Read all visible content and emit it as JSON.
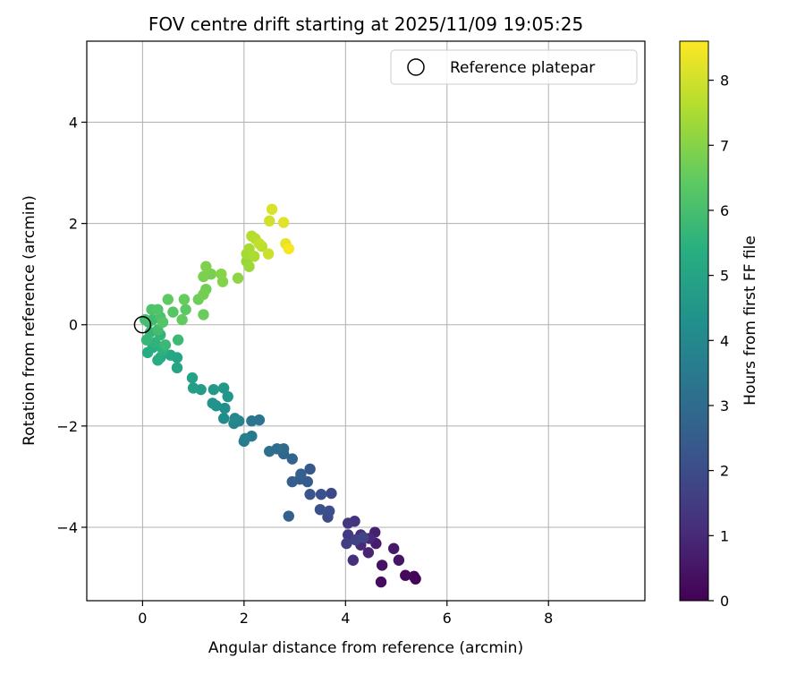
{
  "chart_data": {
    "type": "scatter",
    "title": "FOV centre drift starting at 2025/11/09 19:05:25",
    "xlabel": "Angular distance from reference (arcmin)",
    "ylabel": "Rotation from reference (arcmin)",
    "xlim": [
      -1.1,
      9.9
    ],
    "ylim": [
      -5.45,
      5.6
    ],
    "xticks": [
      0,
      2,
      4,
      6,
      8
    ],
    "xtick_labels": [
      "0",
      "2",
      "4",
      "6",
      "8"
    ],
    "yticks": [
      -4,
      -2,
      0,
      2,
      4
    ],
    "ytick_labels": [
      "−4",
      "−2",
      "0",
      "2",
      "4"
    ],
    "grid": true,
    "legend": {
      "position": "top-right",
      "entries": [
        {
          "label": "Reference platepar",
          "marker": "open-circle"
        }
      ]
    },
    "reference_point": {
      "x": 0,
      "y": 0
    },
    "colorbar": {
      "label": "Hours from first FF file",
      "colormap": "viridis",
      "range": [
        0,
        8.6
      ],
      "ticks": [
        0,
        1,
        2,
        3,
        4,
        5,
        6,
        7,
        8
      ],
      "tick_labels": [
        "0",
        "1",
        "2",
        "3",
        "4",
        "5",
        "6",
        "7",
        "8"
      ]
    },
    "points": [
      {
        "x": 5.38,
        "y": -5.02,
        "t": 0.05
      },
      {
        "x": 5.35,
        "y": -4.97,
        "t": 0.1
      },
      {
        "x": 5.18,
        "y": -4.95,
        "t": 0.2
      },
      {
        "x": 4.7,
        "y": -5.08,
        "t": 0.3
      },
      {
        "x": 4.72,
        "y": -4.75,
        "t": 0.4
      },
      {
        "x": 5.05,
        "y": -4.65,
        "t": 0.5
      },
      {
        "x": 4.95,
        "y": -4.42,
        "t": 0.6
      },
      {
        "x": 4.6,
        "y": -4.32,
        "t": 0.7
      },
      {
        "x": 4.58,
        "y": -4.1,
        "t": 0.8
      },
      {
        "x": 4.45,
        "y": -4.5,
        "t": 0.9
      },
      {
        "x": 4.47,
        "y": -4.22,
        "t": 1.0
      },
      {
        "x": 4.3,
        "y": -4.35,
        "t": 1.05
      },
      {
        "x": 4.3,
        "y": -4.15,
        "t": 1.1
      },
      {
        "x": 4.15,
        "y": -4.65,
        "t": 1.2
      },
      {
        "x": 4.18,
        "y": -3.88,
        "t": 1.3
      },
      {
        "x": 4.05,
        "y": -3.92,
        "t": 1.4
      },
      {
        "x": 4.05,
        "y": -4.15,
        "t": 1.5
      },
      {
        "x": 4.02,
        "y": -4.32,
        "t": 1.6
      },
      {
        "x": 4.2,
        "y": -4.25,
        "t": 1.7
      },
      {
        "x": 4.35,
        "y": -4.2,
        "t": 1.8
      },
      {
        "x": 3.72,
        "y": -3.33,
        "t": 1.9
      },
      {
        "x": 3.65,
        "y": -3.8,
        "t": 2.0
      },
      {
        "x": 3.68,
        "y": -3.68,
        "t": 2.1
      },
      {
        "x": 3.5,
        "y": -3.65,
        "t": 2.15
      },
      {
        "x": 3.52,
        "y": -3.35,
        "t": 2.2
      },
      {
        "x": 3.3,
        "y": -3.35,
        "t": 2.3
      },
      {
        "x": 3.3,
        "y": -2.85,
        "t": 2.4
      },
      {
        "x": 3.25,
        "y": -3.1,
        "t": 2.5
      },
      {
        "x": 3.1,
        "y": -3.05,
        "t": 2.55
      },
      {
        "x": 2.95,
        "y": -3.1,
        "t": 2.6
      },
      {
        "x": 3.12,
        "y": -2.95,
        "t": 2.65
      },
      {
        "x": 2.88,
        "y": -3.78,
        "t": 2.7
      },
      {
        "x": 2.95,
        "y": -2.65,
        "t": 2.8
      },
      {
        "x": 2.78,
        "y": -2.55,
        "t": 2.9
      },
      {
        "x": 2.78,
        "y": -2.45,
        "t": 3.0
      },
      {
        "x": 2.65,
        "y": -2.45,
        "t": 3.1
      },
      {
        "x": 2.5,
        "y": -2.5,
        "t": 3.2
      },
      {
        "x": 2.3,
        "y": -1.88,
        "t": 3.3
      },
      {
        "x": 2.15,
        "y": -1.9,
        "t": 3.4
      },
      {
        "x": 2.15,
        "y": -2.2,
        "t": 3.5
      },
      {
        "x": 2.0,
        "y": -2.3,
        "t": 3.6
      },
      {
        "x": 2.02,
        "y": -2.25,
        "t": 3.7
      },
      {
        "x": 1.9,
        "y": -1.9,
        "t": 3.8
      },
      {
        "x": 1.8,
        "y": -1.95,
        "t": 3.9
      },
      {
        "x": 1.82,
        "y": -1.85,
        "t": 4.0
      },
      {
        "x": 1.6,
        "y": -1.85,
        "t": 4.1
      },
      {
        "x": 1.62,
        "y": -1.65,
        "t": 4.2
      },
      {
        "x": 1.45,
        "y": -1.6,
        "t": 4.3
      },
      {
        "x": 1.38,
        "y": -1.55,
        "t": 4.4
      },
      {
        "x": 1.68,
        "y": -1.42,
        "t": 4.5
      },
      {
        "x": 1.6,
        "y": -1.25,
        "t": 4.55
      },
      {
        "x": 1.4,
        "y": -1.28,
        "t": 4.6
      },
      {
        "x": 1.15,
        "y": -1.28,
        "t": 4.7
      },
      {
        "x": 1.0,
        "y": -1.25,
        "t": 4.8
      },
      {
        "x": 0.98,
        "y": -1.05,
        "t": 4.9
      },
      {
        "x": 0.68,
        "y": -0.85,
        "t": 5.0
      },
      {
        "x": 0.68,
        "y": -0.65,
        "t": 5.05
      },
      {
        "x": 0.55,
        "y": -0.6,
        "t": 5.1
      },
      {
        "x": 0.35,
        "y": -0.65,
        "t": 5.2
      },
      {
        "x": 0.3,
        "y": -0.7,
        "t": 5.3
      },
      {
        "x": 0.1,
        "y": -0.55,
        "t": 5.35
      },
      {
        "x": 0.2,
        "y": -0.45,
        "t": 5.4
      },
      {
        "x": 0.4,
        "y": -0.5,
        "t": 5.5
      },
      {
        "x": 0.25,
        "y": -0.35,
        "t": 5.55
      },
      {
        "x": 0.35,
        "y": -0.2,
        "t": 5.6
      },
      {
        "x": 0.15,
        "y": -0.15,
        "t": 5.65
      },
      {
        "x": 0.08,
        "y": -0.3,
        "t": 5.7
      },
      {
        "x": 0.45,
        "y": -0.4,
        "t": 5.75
      },
      {
        "x": 0.7,
        "y": -0.3,
        "t": 5.8
      },
      {
        "x": 0.12,
        "y": 0.05,
        "t": 5.85
      },
      {
        "x": 0.2,
        "y": 0.1,
        "t": 5.9
      },
      {
        "x": 0.3,
        "y": -0.1,
        "t": 5.95
      },
      {
        "x": 0.05,
        "y": 0.1,
        "t": 6.0
      },
      {
        "x": 0.35,
        "y": 0.15,
        "t": 6.1
      },
      {
        "x": 0.18,
        "y": 0.3,
        "t": 6.15
      },
      {
        "x": 0.3,
        "y": 0.3,
        "t": 6.2
      },
      {
        "x": 0.4,
        "y": 0.05,
        "t": 6.25
      },
      {
        "x": 0.6,
        "y": 0.25,
        "t": 6.3
      },
      {
        "x": 0.85,
        "y": 0.3,
        "t": 6.4
      },
      {
        "x": 0.5,
        "y": 0.5,
        "t": 6.45
      },
      {
        "x": 0.78,
        "y": 0.1,
        "t": 6.5
      },
      {
        "x": 0.82,
        "y": 0.5,
        "t": 6.55
      },
      {
        "x": 1.2,
        "y": 0.2,
        "t": 6.6
      },
      {
        "x": 1.1,
        "y": 0.5,
        "t": 6.65
      },
      {
        "x": 1.25,
        "y": 0.7,
        "t": 6.7
      },
      {
        "x": 1.2,
        "y": 0.6,
        "t": 6.75
      },
      {
        "x": 1.35,
        "y": 1.0,
        "t": 6.8
      },
      {
        "x": 1.2,
        "y": 0.95,
        "t": 6.85
      },
      {
        "x": 1.25,
        "y": 1.15,
        "t": 6.9
      },
      {
        "x": 1.58,
        "y": 0.85,
        "t": 6.95
      },
      {
        "x": 1.55,
        "y": 1.0,
        "t": 7.0
      },
      {
        "x": 1.88,
        "y": 0.92,
        "t": 7.1
      },
      {
        "x": 2.05,
        "y": 1.25,
        "t": 7.2
      },
      {
        "x": 2.1,
        "y": 1.15,
        "t": 7.3
      },
      {
        "x": 2.05,
        "y": 1.4,
        "t": 7.4
      },
      {
        "x": 2.1,
        "y": 1.5,
        "t": 7.45
      },
      {
        "x": 2.2,
        "y": 1.35,
        "t": 7.5
      },
      {
        "x": 2.15,
        "y": 1.75,
        "t": 7.6
      },
      {
        "x": 2.22,
        "y": 1.7,
        "t": 7.65
      },
      {
        "x": 2.35,
        "y": 1.55,
        "t": 7.7
      },
      {
        "x": 2.3,
        "y": 1.6,
        "t": 7.8
      },
      {
        "x": 2.48,
        "y": 1.4,
        "t": 7.9
      },
      {
        "x": 2.5,
        "y": 2.05,
        "t": 8.0
      },
      {
        "x": 2.55,
        "y": 2.28,
        "t": 8.1
      },
      {
        "x": 2.78,
        "y": 2.02,
        "t": 8.2
      },
      {
        "x": 2.82,
        "y": 1.6,
        "t": 8.3
      },
      {
        "x": 2.88,
        "y": 1.5,
        "t": 8.5
      }
    ]
  }
}
